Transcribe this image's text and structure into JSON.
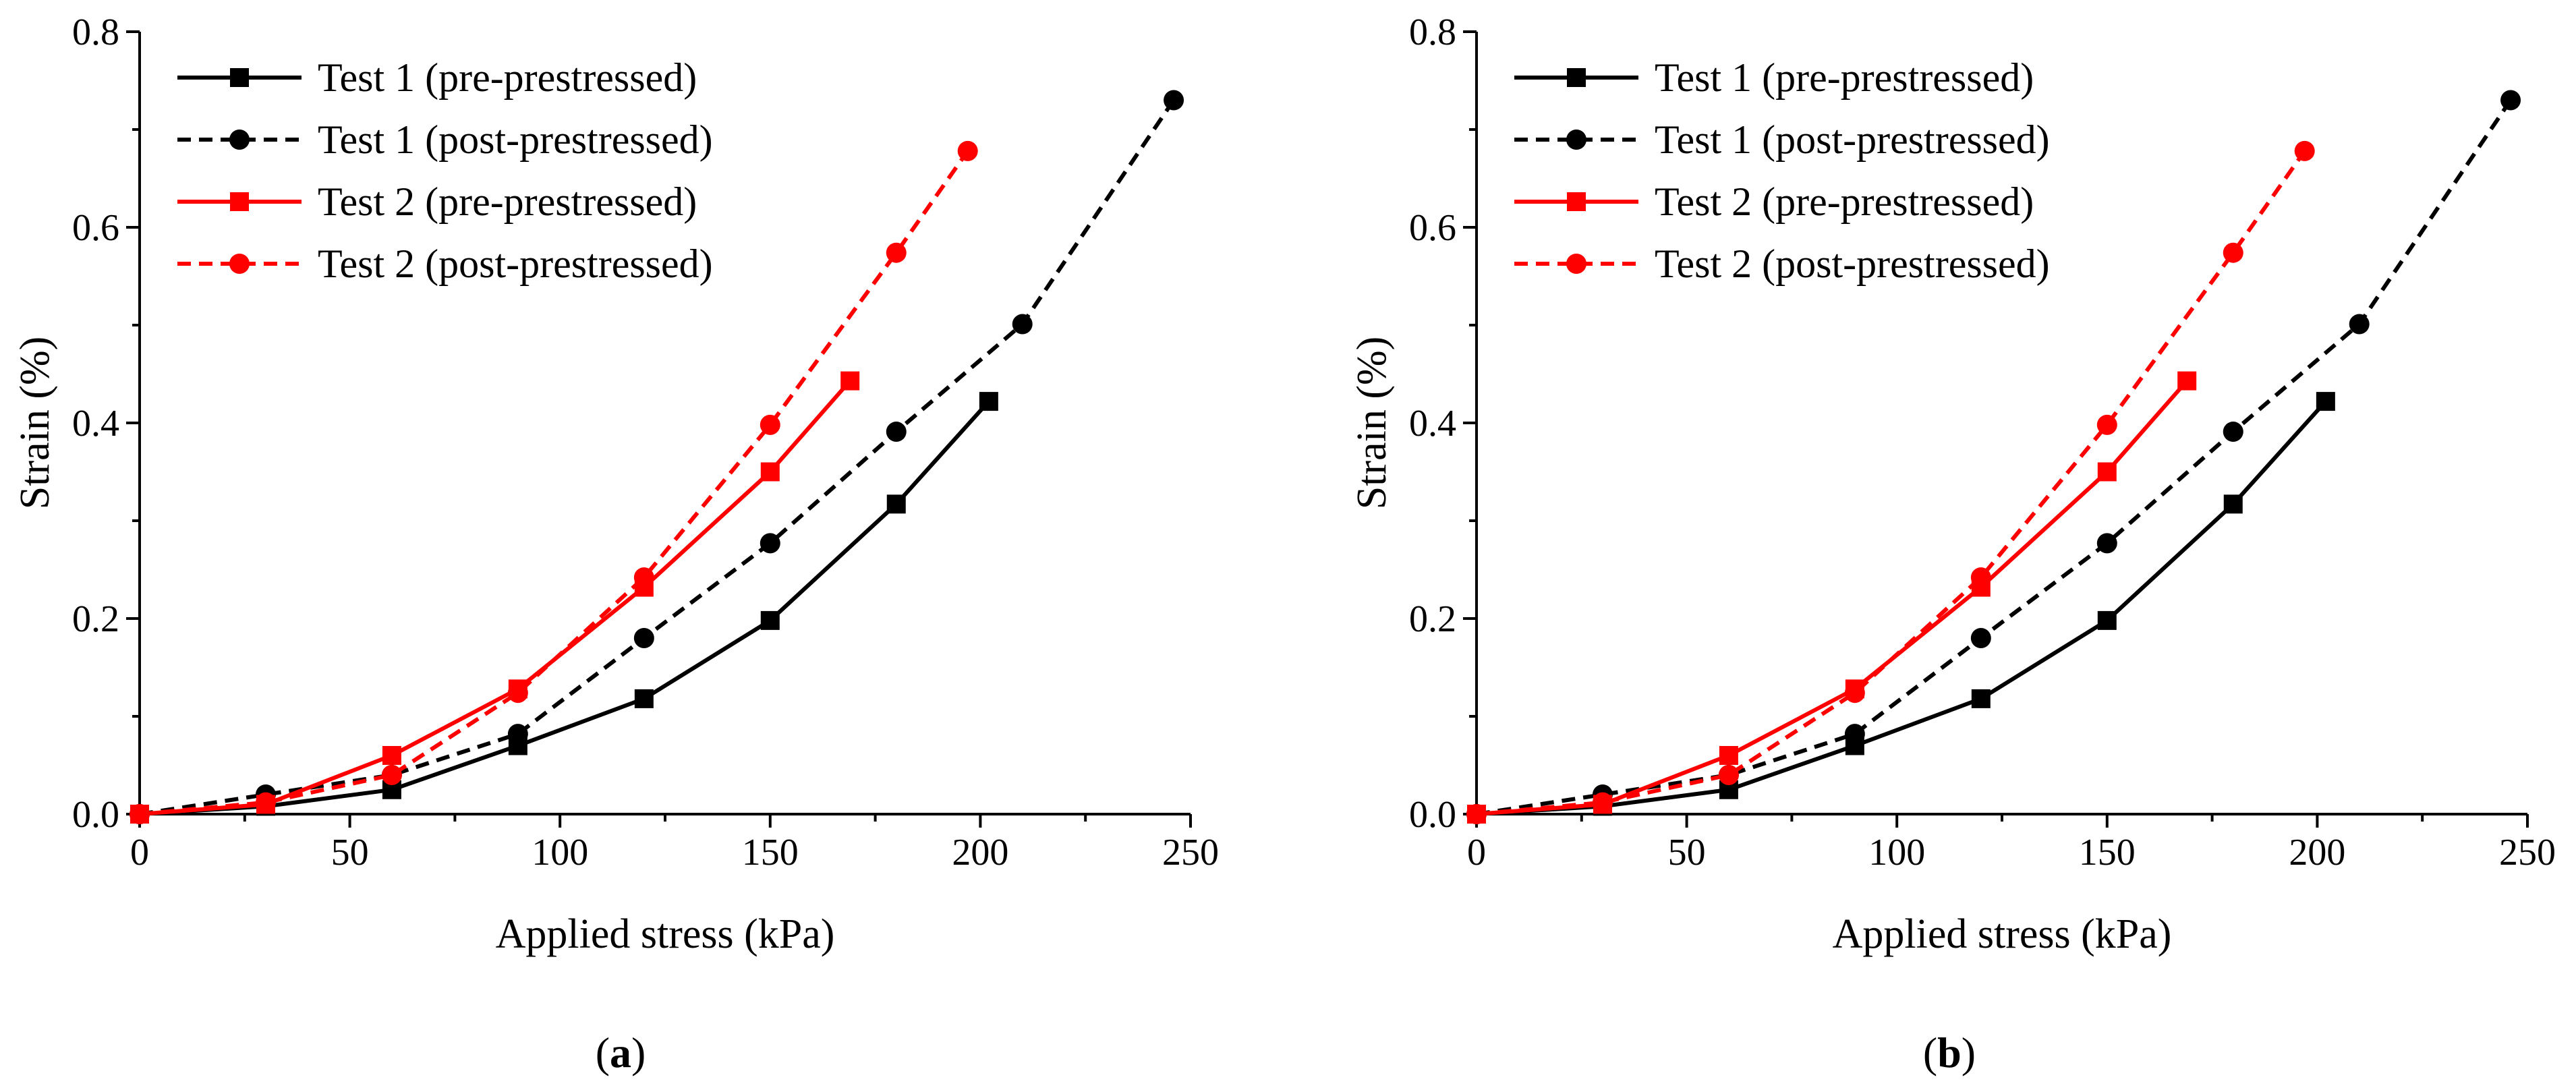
{
  "colors": {
    "test1": "#000000",
    "test2": "#ff0000"
  },
  "chart_data": [
    {
      "panel_label": {
        "open": "(",
        "letter": "a",
        "close": ")"
      },
      "type": "line",
      "xlabel": "Applied stress (kPa)",
      "ylabel": "Strain (%)",
      "xlim": [
        0,
        250
      ],
      "ylim": [
        0,
        0.8
      ],
      "xticks": [
        "0",
        "50",
        "100",
        "150",
        "200",
        "250"
      ],
      "yticks": [
        "0.0",
        "0.2",
        "0.4",
        "0.6",
        "0.8"
      ],
      "legend_position": "top-left",
      "grid": false,
      "series": [
        {
          "name": "Test 1 (pre-prestressed)",
          "color": "#000000",
          "dash": "solid",
          "marker": "square",
          "x": [
            0,
            30,
            60,
            90,
            120,
            150,
            180,
            202
          ],
          "y": [
            0.0,
            0.008,
            0.025,
            0.07,
            0.118,
            0.198,
            0.317,
            0.422
          ]
        },
        {
          "name": "Test 1 (post-prestressed)",
          "color": "#000000",
          "dash": "dashed",
          "marker": "circle",
          "x": [
            0,
            30,
            60,
            90,
            120,
            150,
            180,
            210,
            246
          ],
          "y": [
            0.0,
            0.02,
            0.04,
            0.082,
            0.18,
            0.277,
            0.391,
            0.501,
            0.73
          ]
        },
        {
          "name": "Test 2 (pre-prestressed)",
          "color": "#ff0000",
          "dash": "solid",
          "marker": "square",
          "x": [
            0,
            30,
            60,
            90,
            120,
            150,
            169
          ],
          "y": [
            0.0,
            0.01,
            0.06,
            0.128,
            0.232,
            0.35,
            0.443
          ]
        },
        {
          "name": "Test 2 (post-prestressed)",
          "color": "#ff0000",
          "dash": "dashed",
          "marker": "circle",
          "x": [
            0,
            30,
            60,
            90,
            120,
            150,
            180,
            197
          ],
          "y": [
            0.0,
            0.012,
            0.04,
            0.124,
            0.242,
            0.398,
            0.574,
            0.678
          ]
        }
      ]
    },
    {
      "panel_label": {
        "open": "(",
        "letter": "b",
        "close": ")"
      },
      "type": "line",
      "xlabel": "Applied stress (kPa)",
      "ylabel": "Strain (%)",
      "xlim": [
        0,
        250
      ],
      "ylim": [
        0,
        0.8
      ],
      "xticks": [
        "0",
        "50",
        "100",
        "150",
        "200",
        "250"
      ],
      "yticks": [
        "0.0",
        "0.2",
        "0.4",
        "0.6",
        "0.8"
      ],
      "legend_position": "top-left",
      "grid": false,
      "series": [
        {
          "name": "Test 1 (pre-prestressed)",
          "color": "#000000",
          "dash": "solid",
          "marker": "square",
          "x": [
            0,
            30,
            60,
            90,
            120,
            150,
            180,
            202
          ],
          "y": [
            0.0,
            0.008,
            0.025,
            0.07,
            0.118,
            0.198,
            0.317,
            0.422
          ]
        },
        {
          "name": "Test 1 (post-prestressed)",
          "color": "#000000",
          "dash": "dashed",
          "marker": "circle",
          "x": [
            0,
            30,
            60,
            90,
            120,
            150,
            180,
            210,
            246
          ],
          "y": [
            0.0,
            0.02,
            0.04,
            0.082,
            0.18,
            0.277,
            0.391,
            0.501,
            0.73
          ]
        },
        {
          "name": "Test 2 (pre-prestressed)",
          "color": "#ff0000",
          "dash": "solid",
          "marker": "square",
          "x": [
            0,
            30,
            60,
            90,
            120,
            150,
            169
          ],
          "y": [
            0.0,
            0.01,
            0.06,
            0.128,
            0.232,
            0.35,
            0.443
          ]
        },
        {
          "name": "Test 2 (post-prestressed)",
          "color": "#ff0000",
          "dash": "dashed",
          "marker": "circle",
          "x": [
            0,
            30,
            60,
            90,
            120,
            150,
            180,
            197
          ],
          "y": [
            0.0,
            0.012,
            0.04,
            0.124,
            0.242,
            0.398,
            0.574,
            0.678
          ]
        }
      ]
    }
  ]
}
